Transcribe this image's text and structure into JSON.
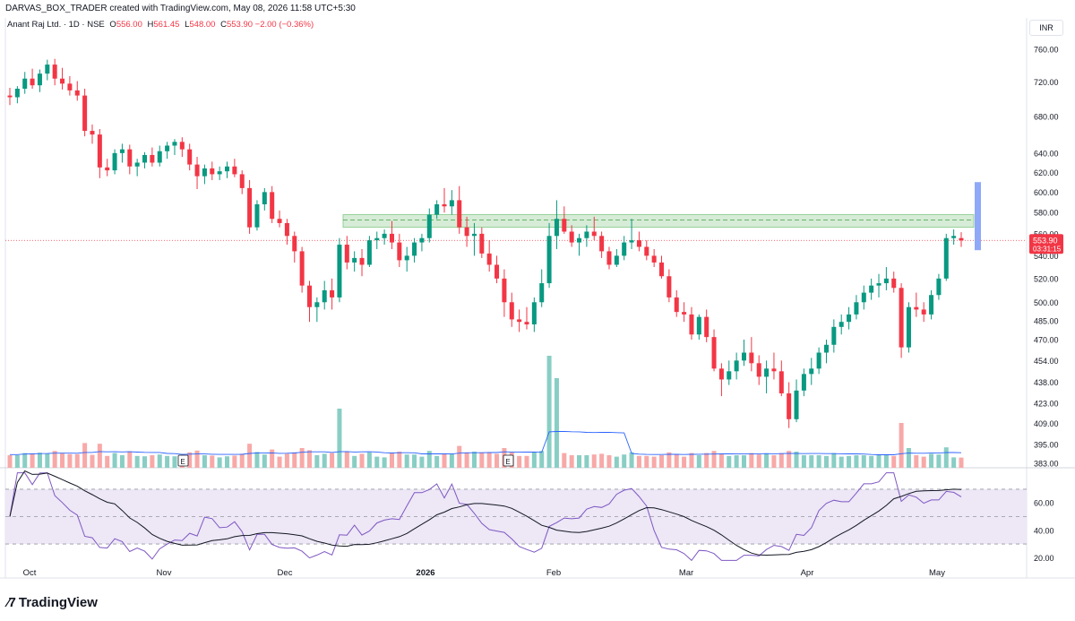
{
  "header": {
    "creator_text": "DARVAS_BOX_TRADER created with TradingView.com, May 08, 2026 11:58 UTC+5:30"
  },
  "legend": {
    "symbol": "Anant Raj Ltd. · 1D · NSE",
    "o_label": "O",
    "o_value": "556.00",
    "h_label": "H",
    "h_value": "561.45",
    "l_label": "L",
    "l_value": "548.00",
    "c_label": "C",
    "c_value": "553.90 −2.00 (−0.36%)"
  },
  "currency": "INR",
  "price_badge": {
    "price": "553.90",
    "countdown": "03:31:15"
  },
  "earnings_marker": "E",
  "footer": {
    "brand": "TradingView"
  },
  "colors": {
    "up": "#089981",
    "down": "#f23645",
    "vol_up": "#89cec4",
    "vol_down": "#f7a9a8",
    "rsi_line": "#7e57c2",
    "rsi_ma": "#131722",
    "rsi_band": "#ede7f6",
    "zone": "#c8e6c9",
    "vol_ma": "#2962ff",
    "range_bar": "#8fa9f7"
  },
  "chart_data": {
    "type": "candlestick",
    "symbol": "Anant Raj Ltd.",
    "interval": "1D",
    "exchange": "NSE",
    "price_axis": {
      "ticks": [
        760.0,
        720.0,
        680.0,
        640.0,
        620.0,
        600.0,
        580.0,
        560.0,
        540.0,
        520.0,
        500.0,
        485.0,
        470.0,
        454.0,
        438.0,
        423.0,
        409.0,
        395.0,
        383.0
      ],
      "scale": "log"
    },
    "time_axis": {
      "labels": [
        "Oct",
        "Nov",
        "Dec",
        "2026",
        "Feb",
        "Mar",
        "Apr",
        "May"
      ]
    },
    "last_price": 553.9,
    "support_resistance_zone": [
      566,
      578
    ],
    "zone_midline": 573,
    "range_bar": [
      545,
      610
    ],
    "ohlc": [
      [
        704,
        713,
        693,
        702
      ],
      [
        702,
        715,
        695,
        712
      ],
      [
        712,
        732,
        706,
        724
      ],
      [
        724,
        736,
        712,
        716
      ],
      [
        716,
        735,
        708,
        730
      ],
      [
        730,
        747,
        722,
        741
      ],
      [
        741,
        748,
        716,
        724
      ],
      [
        724,
        737,
        711,
        718
      ],
      [
        718,
        727,
        704,
        710
      ],
      [
        710,
        721,
        698,
        704
      ],
      [
        704,
        712,
        658,
        664
      ],
      [
        664,
        671,
        650,
        660
      ],
      [
        660,
        666,
        614,
        625
      ],
      [
        625,
        634,
        616,
        622
      ],
      [
        622,
        644,
        618,
        640
      ],
      [
        640,
        650,
        630,
        644
      ],
      [
        644,
        649,
        618,
        626
      ],
      [
        626,
        634,
        616,
        630
      ],
      [
        630,
        641,
        624,
        638
      ],
      [
        638,
        646,
        626,
        630
      ],
      [
        630,
        648,
        626,
        642
      ],
      [
        642,
        652,
        634,
        648
      ],
      [
        648,
        655,
        638,
        652
      ],
      [
        652,
        657,
        636,
        644
      ],
      [
        644,
        650,
        622,
        628
      ],
      [
        628,
        636,
        603,
        616
      ],
      [
        616,
        628,
        608,
        624
      ],
      [
        624,
        631,
        612,
        618
      ],
      [
        618,
        626,
        612,
        621
      ],
      [
        621,
        631,
        614,
        626
      ],
      [
        626,
        634,
        615,
        618
      ],
      [
        618,
        622,
        598,
        604
      ],
      [
        604,
        612,
        560,
        566
      ],
      [
        566,
        592,
        563,
        588
      ],
      [
        588,
        604,
        582,
        600
      ],
      [
        600,
        606,
        570,
        574
      ],
      [
        574,
        582,
        566,
        570
      ],
      [
        570,
        574,
        550,
        558
      ],
      [
        558,
        562,
        534,
        544
      ],
      [
        544,
        548,
        508,
        514
      ],
      [
        514,
        518,
        484,
        496
      ],
      [
        496,
        504,
        484,
        500
      ],
      [
        500,
        518,
        494,
        510
      ],
      [
        510,
        520,
        494,
        504
      ],
      [
        504,
        556,
        500,
        550
      ],
      [
        550,
        558,
        528,
        534
      ],
      [
        534,
        544,
        526,
        538
      ],
      [
        538,
        546,
        522,
        532
      ],
      [
        532,
        558,
        530,
        554
      ],
      [
        554,
        562,
        546,
        556
      ],
      [
        556,
        564,
        550,
        560
      ],
      [
        560,
        572,
        546,
        552
      ],
      [
        552,
        560,
        530,
        536
      ],
      [
        536,
        548,
        526,
        540
      ],
      [
        540,
        556,
        534,
        552
      ],
      [
        552,
        560,
        544,
        556
      ],
      [
        556,
        584,
        552,
        578
      ],
      [
        578,
        592,
        574,
        588
      ],
      [
        588,
        604,
        580,
        586
      ],
      [
        586,
        602,
        578,
        592
      ],
      [
        592,
        606,
        560,
        566
      ],
      [
        566,
        576,
        548,
        558
      ],
      [
        558,
        570,
        540,
        560
      ],
      [
        560,
        566,
        538,
        542
      ],
      [
        542,
        554,
        526,
        532
      ],
      [
        532,
        540,
        516,
        520
      ],
      [
        520,
        528,
        488,
        500
      ],
      [
        500,
        508,
        480,
        486
      ],
      [
        486,
        494,
        476,
        484
      ],
      [
        484,
        496,
        478,
        482
      ],
      [
        482,
        504,
        476,
        500
      ],
      [
        500,
        528,
        496,
        516
      ],
      [
        516,
        570,
        512,
        558
      ],
      [
        558,
        592,
        546,
        574
      ],
      [
        574,
        586,
        560,
        562
      ],
      [
        562,
        568,
        548,
        552
      ],
      [
        552,
        560,
        540,
        556
      ],
      [
        556,
        568,
        548,
        562
      ],
      [
        562,
        576,
        554,
        558
      ],
      [
        558,
        562,
        538,
        544
      ],
      [
        544,
        548,
        528,
        532
      ],
      [
        532,
        546,
        530,
        540
      ],
      [
        540,
        558,
        536,
        552
      ],
      [
        552,
        574,
        546,
        554
      ],
      [
        554,
        562,
        544,
        548
      ],
      [
        548,
        554,
        536,
        540
      ],
      [
        540,
        546,
        530,
        534
      ],
      [
        534,
        540,
        520,
        522
      ],
      [
        522,
        528,
        500,
        504
      ],
      [
        504,
        510,
        488,
        492
      ],
      [
        492,
        500,
        484,
        490
      ],
      [
        490,
        496,
        470,
        474
      ],
      [
        474,
        490,
        470,
        488
      ],
      [
        488,
        494,
        468,
        472
      ],
      [
        472,
        478,
        446,
        448
      ],
      [
        448,
        452,
        428,
        440
      ],
      [
        440,
        454,
        436,
        446
      ],
      [
        446,
        460,
        440,
        454
      ],
      [
        454,
        470,
        450,
        460
      ],
      [
        460,
        472,
        446,
        452
      ],
      [
        452,
        458,
        436,
        442
      ],
      [
        442,
        454,
        430,
        448
      ],
      [
        448,
        460,
        440,
        446
      ],
      [
        446,
        454,
        428,
        430
      ],
      [
        430,
        438,
        406,
        412
      ],
      [
        412,
        440,
        410,
        432
      ],
      [
        432,
        448,
        428,
        444
      ],
      [
        444,
        456,
        436,
        448
      ],
      [
        448,
        464,
        444,
        460
      ],
      [
        460,
        470,
        452,
        466
      ],
      [
        466,
        486,
        460,
        480
      ],
      [
        480,
        490,
        474,
        484
      ],
      [
        484,
        496,
        478,
        490
      ],
      [
        490,
        506,
        486,
        500
      ],
      [
        500,
        514,
        494,
        508
      ],
      [
        508,
        520,
        502,
        514
      ],
      [
        514,
        524,
        504,
        516
      ],
      [
        516,
        530,
        510,
        520
      ],
      [
        520,
        526,
        508,
        512
      ],
      [
        512,
        516,
        456,
        464
      ],
      [
        464,
        500,
        460,
        496
      ],
      [
        496,
        508,
        488,
        494
      ],
      [
        494,
        500,
        484,
        490
      ],
      [
        490,
        510,
        486,
        506
      ],
      [
        506,
        524,
        502,
        520
      ],
      [
        520,
        560,
        518,
        556
      ],
      [
        556,
        564,
        550,
        558
      ],
      [
        556,
        561.45,
        548,
        553.9
      ]
    ],
    "volume_note": "volume histogram with moving average",
    "rsi": {
      "ticks": [
        60.0,
        40.0,
        20.0
      ],
      "upper_band": 70,
      "lower_band": 30,
      "middle": 50
    }
  }
}
